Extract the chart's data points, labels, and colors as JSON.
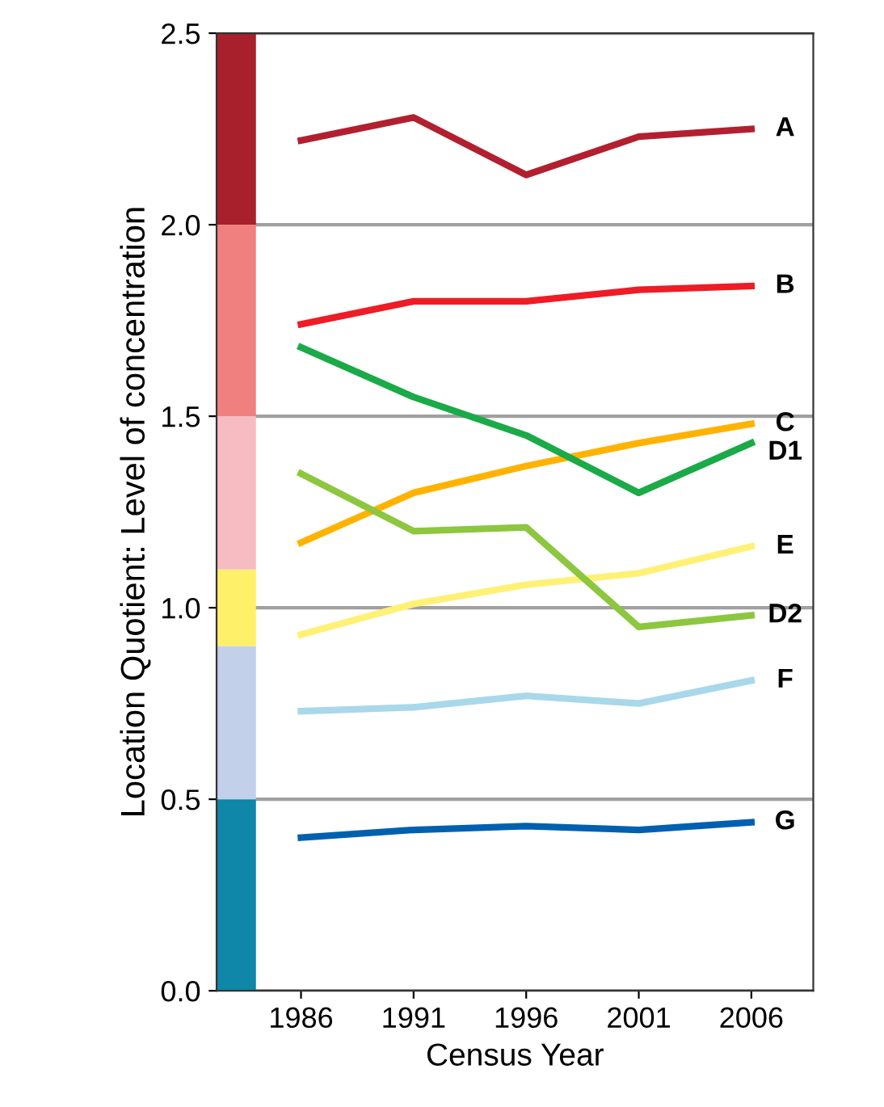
{
  "chart_data": {
    "type": "line",
    "ylabel": "Location Quotient: Level of concentration",
    "xlabel": "Census Year",
    "categories": [
      "1986",
      "1991",
      "1996",
      "2001",
      "2006"
    ],
    "series": [
      {
        "name": "A",
        "color": "#b22030",
        "values": [
          2.22,
          2.28,
          2.13,
          2.23,
          2.25
        ]
      },
      {
        "name": "B",
        "color": "#ee1c25",
        "values": [
          1.74,
          1.8,
          1.8,
          1.83,
          1.84
        ]
      },
      {
        "name": "C",
        "color": "#ffb300",
        "values": [
          1.17,
          1.3,
          1.37,
          1.43,
          1.48
        ]
      },
      {
        "name": "D1",
        "color": "#1aaa48",
        "values": [
          1.68,
          1.55,
          1.45,
          1.3,
          1.43
        ]
      },
      {
        "name": "E",
        "color": "#fff176",
        "values": [
          0.93,
          1.01,
          1.06,
          1.09,
          1.16
        ]
      },
      {
        "name": "D2",
        "color": "#8dc63f",
        "values": [
          1.35,
          1.2,
          1.21,
          0.95,
          0.98
        ]
      },
      {
        "name": "F",
        "color": "#a8d8ea",
        "values": [
          0.73,
          0.74,
          0.77,
          0.75,
          0.81
        ]
      },
      {
        "name": "G",
        "color": "#0060b0",
        "values": [
          0.4,
          0.42,
          0.43,
          0.42,
          0.44
        ]
      }
    ],
    "ylim": [
      0,
      2.5
    ],
    "yticks": [
      {
        "value": 0,
        "label": "0.0"
      },
      0.5,
      {
        "value": 1,
        "label": "1.0"
      },
      1.5,
      {
        "value": 2,
        "label": "2.0"
      },
      2.5
    ],
    "grid": "y",
    "marker": "none",
    "line_style": "solid",
    "bands": [
      {
        "axis": "y",
        "from": 0,
        "to": 0.5,
        "color": "#0e87a8"
      },
      {
        "axis": "y",
        "from": 0.5,
        "to": 0.9,
        "color": "#c2d0ea"
      },
      {
        "axis": "y",
        "from": 0.9,
        "to": 1.1,
        "color": "#fff06a"
      },
      {
        "axis": "y",
        "from": 1.1,
        "to": 1.5,
        "color": "#f7bcc1"
      },
      {
        "axis": "y",
        "from": 1.5,
        "to": 2.0,
        "color": "#f08080"
      },
      {
        "axis": "y",
        "from": 2.0,
        "to": 2.5,
        "color": "#a8202c"
      }
    ]
  }
}
